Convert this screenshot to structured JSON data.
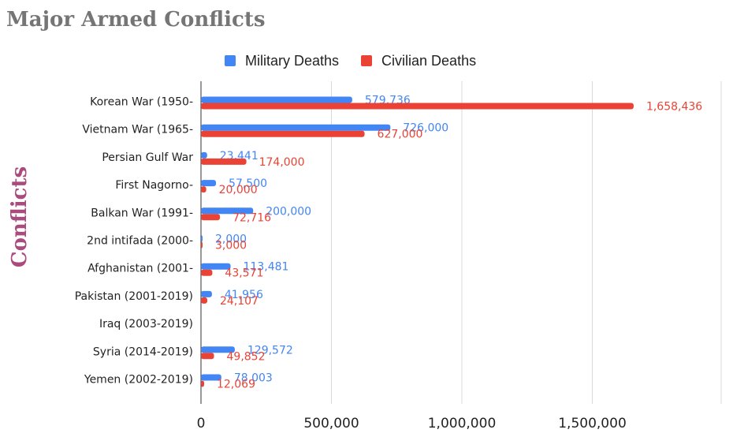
{
  "chart_data": {
    "type": "bar",
    "orientation": "horizontal",
    "title": "Major Armed Conflicts",
    "ylabel": "Conflicts",
    "xlabel": "",
    "legend_position": "top",
    "grid": true,
    "xlim": [
      0,
      2000000
    ],
    "x_ticks": [
      0,
      500000,
      1000000,
      1500000
    ],
    "x_tick_labels": [
      "0",
      "500,000",
      "1,000,000",
      "1,500,000"
    ],
    "categories": [
      "Korean War (1950-",
      "Vietnam War (1965-",
      "Persian Gulf War",
      "First Nagorno-",
      "Balkan War (1991-",
      "2nd intifada (2000-",
      "Afghanistan (2001-",
      "Pakistan (2001-2019)",
      "Iraq (2003-2019)",
      "Syria (2014-2019)",
      "Yemen (2002-2019)"
    ],
    "series": [
      {
        "name": "Military Deaths",
        "color": "#4285f4",
        "values": [
          579736,
          726000,
          23441,
          57500,
          200000,
          2000,
          113481,
          41956,
          null,
          129572,
          78003
        ],
        "labels": [
          "579,736",
          "726,000",
          "23,441",
          "57,500",
          "200,000",
          "2,000",
          "113,481",
          "41,956",
          "",
          "129,572",
          "78,003"
        ]
      },
      {
        "name": "Civilian Deaths",
        "color": "#ea4335",
        "values": [
          1658436,
          627000,
          174000,
          20000,
          72716,
          3000,
          43571,
          24107,
          null,
          49852,
          12069
        ],
        "labels": [
          "1,658,436",
          "627,000",
          "174,000",
          "20,000",
          "72,716",
          "3,000",
          "43,571",
          "24,107",
          "",
          "49,852",
          "12,069"
        ]
      }
    ]
  }
}
